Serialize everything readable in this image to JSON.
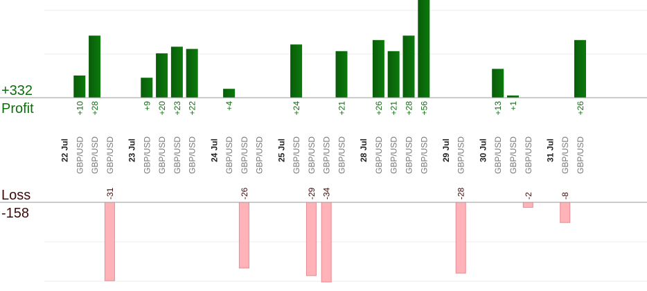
{
  "summary": {
    "profit_total": "+332",
    "profit_label": "Profit",
    "loss_label": "Loss",
    "loss_total": "-158"
  },
  "colors": {
    "profit_bar_dark": "#0a5c0a",
    "profit_bar_light": "#0b7a0b",
    "profit_text": "#0a6e0a",
    "loss_bar": "#ffb3b8",
    "loss_bar_edge": "#e58a92",
    "loss_text": "#3a0a0a",
    "date_text": "#222222",
    "pair_text": "#777777",
    "axis": "#999999",
    "grid": "#eeeeee"
  },
  "chart_data": {
    "type": "bar",
    "title": "",
    "xlabel": "",
    "ylabel": "",
    "columns": [
      {
        "kind": "date",
        "label": "22 Jul"
      },
      {
        "kind": "trade",
        "label": "GBP/USD",
        "profit": 10
      },
      {
        "kind": "trade",
        "label": "GBP/USD",
        "profit": 28
      },
      {
        "kind": "trade",
        "label": "GBP/USD",
        "loss": -31
      },
      {
        "kind": "gap"
      },
      {
        "kind": "date",
        "label": "23 Jul"
      },
      {
        "kind": "trade",
        "label": "GBP/USD",
        "profit": 9
      },
      {
        "kind": "trade",
        "label": "GBP/USD",
        "profit": 20
      },
      {
        "kind": "trade",
        "label": "GBP/USD",
        "profit": 23
      },
      {
        "kind": "trade",
        "label": "GBP/USD",
        "profit": 22
      },
      {
        "kind": "gap"
      },
      {
        "kind": "date",
        "label": "24 Jul"
      },
      {
        "kind": "trade",
        "label": "GBP/USD",
        "profit": 4
      },
      {
        "kind": "trade",
        "label": "GBP/USD",
        "loss": -26
      },
      {
        "kind": "trade",
        "label": "GBP/USD"
      },
      {
        "kind": "gap"
      },
      {
        "kind": "date",
        "label": "25 Jul"
      },
      {
        "kind": "trade",
        "label": "GBP/USD",
        "profit": 24
      },
      {
        "kind": "trade",
        "label": "GBP/USD",
        "loss": -29
      },
      {
        "kind": "trade",
        "label": "GBP/USD",
        "loss": -34
      },
      {
        "kind": "trade",
        "label": "GBP/USD",
        "profit": 21
      },
      {
        "kind": "gap"
      },
      {
        "kind": "date",
        "label": "28 Jul"
      },
      {
        "kind": "trade",
        "label": "GBP/USD",
        "profit": 26
      },
      {
        "kind": "trade",
        "label": "GBP/USD",
        "profit": 21
      },
      {
        "kind": "trade",
        "label": "GBP/USD",
        "profit": 28
      },
      {
        "kind": "trade",
        "label": "GBP/USD",
        "profit": 56
      },
      {
        "kind": "gap"
      },
      {
        "kind": "date",
        "label": "29 Jul"
      },
      {
        "kind": "trade",
        "label": "GBP/USD",
        "loss": -28
      },
      {
        "kind": "gap"
      },
      {
        "kind": "date",
        "label": "30 Jul"
      },
      {
        "kind": "trade",
        "label": "GBP/USD",
        "profit": 13
      },
      {
        "kind": "trade",
        "label": "GBP/USD",
        "profit": 1
      },
      {
        "kind": "trade",
        "label": "GBP/USD",
        "loss": -2
      },
      {
        "kind": "gap"
      },
      {
        "kind": "date",
        "label": "31 Jul"
      },
      {
        "kind": "trade",
        "label": "GBP/USD",
        "loss": -8
      },
      {
        "kind": "trade",
        "label": "GBP/USD",
        "profit": 26
      }
    ]
  }
}
